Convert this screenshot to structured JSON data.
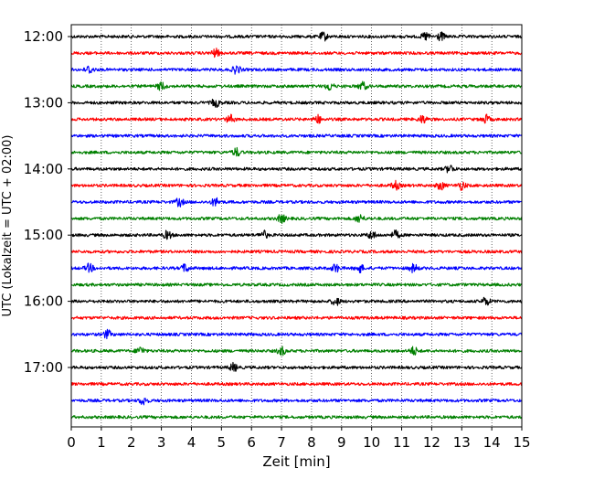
{
  "chart_data": {
    "type": "line",
    "title": "",
    "xlabel": "Zeit  [min]",
    "ylabel": "UTC (Lokalzeit = UTC + 02:00)",
    "xlim": [
      0,
      15
    ],
    "x_ticks": [
      "0",
      "1",
      "2",
      "3",
      "4",
      "5",
      "6",
      "7",
      "8",
      "9",
      "10",
      "11",
      "12",
      "13",
      "14",
      "15"
    ],
    "y_tick_labels": [
      "12:00",
      "13:00",
      "14:00",
      "15:00",
      "16:00",
      "17:00"
    ],
    "grid": "vertical dotted at each minute",
    "series_colors_cycle": [
      "#000000",
      "#ff0000",
      "#0000ff",
      "#008000"
    ],
    "rows": [
      "12:00",
      "12:15",
      "12:30",
      "12:45",
      "13:00",
      "13:15",
      "13:30",
      "13:45",
      "14:00",
      "14:15",
      "14:30",
      "14:45",
      "15:00",
      "15:15",
      "15:30",
      "15:45",
      "16:00",
      "16:15",
      "16:30",
      "16:45",
      "17:00",
      "17:15",
      "17:30",
      "17:45"
    ],
    "row_bursts_min": [
      [
        8.4,
        11.8,
        12.3
      ],
      [
        4.8
      ],
      [
        0.6,
        5.5
      ],
      [
        3.0,
        8.6,
        9.7
      ],
      [
        4.8
      ],
      [
        5.3,
        8.2,
        11.7,
        13.8
      ],
      [],
      [
        5.5
      ],
      [
        12.6
      ],
      [
        10.8,
        12.3,
        13.0
      ],
      [
        3.6,
        4.8
      ],
      [
        7.0,
        9.6
      ],
      [
        3.2,
        6.4,
        10.0,
        10.8
      ],
      [],
      [
        0.6,
        3.8,
        8.8,
        9.6,
        11.4
      ],
      [],
      [
        8.8,
        13.8
      ],
      [],
      [
        1.2
      ],
      [
        2.3,
        7.0,
        11.4
      ],
      [
        5.4
      ],
      [],
      [
        2.4
      ],
      []
    ]
  }
}
